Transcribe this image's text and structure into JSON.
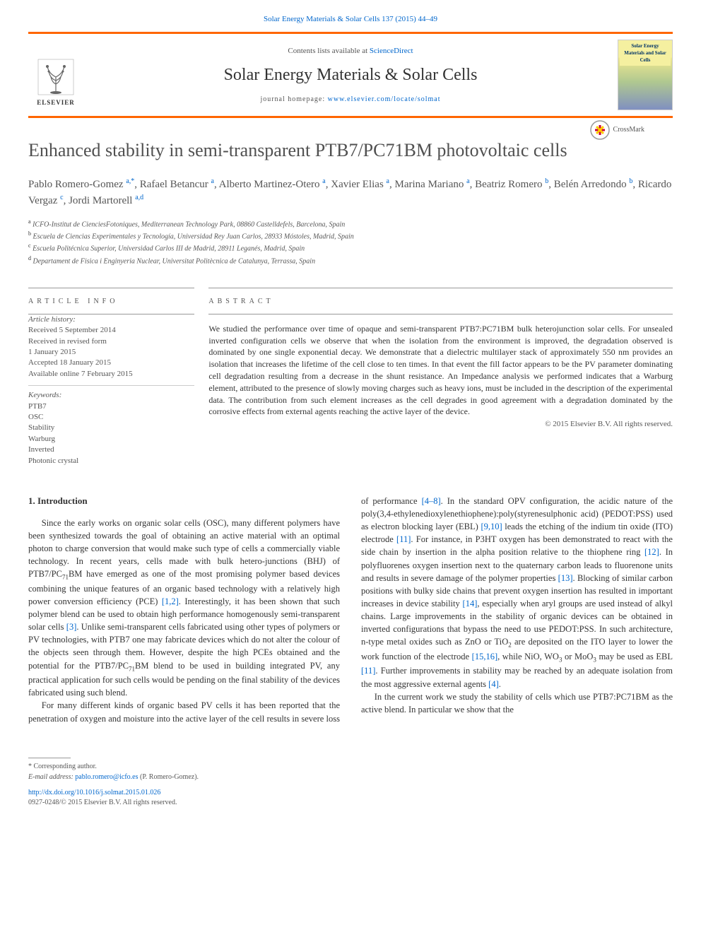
{
  "top_citation": "Solar Energy Materials & Solar Cells 137 (2015) 44–49",
  "header": {
    "publisher": "ELSEVIER",
    "contents_prefix": "Contents lists available at ",
    "contents_link": "ScienceDirect",
    "journal_title": "Solar Energy Materials & Solar Cells",
    "homepage_prefix": "journal homepage: ",
    "homepage_url": "www.elsevier.com/locate/solmat",
    "cover_title": "Solar Energy Materials and Solar Cells"
  },
  "crossmark": "CrossMark",
  "title": "Enhanced stability in semi-transparent PTB7/PC71BM photovoltaic cells",
  "authors_html": "Pablo Romero-Gomez <sup class='author-sup'>a,</sup><a href='#'><sup class='author-sup'>*</sup></a>, Rafael Betancur <sup class='author-sup'>a</sup>, Alberto Martinez-Otero <sup class='author-sup'>a</sup>, Xavier Elias <sup class='author-sup'>a</sup>, Marina Mariano <sup class='author-sup'>a</sup>, Beatriz Romero <sup class='author-sup'>b</sup>, Belén Arredondo <sup class='author-sup'>b</sup>, Ricardo Vergaz <sup class='author-sup'>c</sup>, Jordi Martorell <sup class='author-sup'>a,d</sup>",
  "affiliations": [
    {
      "sup": "a",
      "text": "ICFO-Institut de CienciesFotoniques, Mediterranean Technology Park, 08860 Castelldefels, Barcelona, Spain"
    },
    {
      "sup": "b",
      "text": "Escuela de Ciencias Experimentales y Tecnología, Universidad Rey Juan Carlos, 28933 Móstoles, Madrid, Spain"
    },
    {
      "sup": "c",
      "text": "Escuela Politécnica Superior, Universidad Carlos III de Madrid, 28911 Leganés, Madrid, Spain"
    },
    {
      "sup": "d",
      "text": "Departament de Fisica i Enginyeria Nuclear, Universitat Politècnica de Catalunya, Terrassa, Spain"
    }
  ],
  "article_info": {
    "label": "article info",
    "history_heading": "Article history:",
    "history": [
      "Received 5 September 2014",
      "Received in revised form",
      "1 January 2015",
      "Accepted 18 January 2015",
      "Available online 7 February 2015"
    ],
    "keywords_heading": "Keywords:",
    "keywords": [
      "PTB7",
      "OSC",
      "Stability",
      "Warburg",
      "Inverted",
      "Photonic crystal"
    ]
  },
  "abstract": {
    "label": "abstract",
    "text": "We studied the performance over time of opaque and semi-transparent PTB7:PC71BM bulk heterojunction solar cells. For unsealed inverted configuration cells we observe that when the isolation from the environment is improved, the degradation observed is dominated by one single exponential decay. We demonstrate that a dielectric multilayer stack of approximately 550 nm provides an isolation that increases the lifetime of the cell close to ten times. In that event the fill factor appears to be the PV parameter dominating cell degradation resulting from a decrease in the shunt resistance. An Impedance analysis we performed indicates that a Warburg element, attributed to the presence of slowly moving charges such as heavy ions, must be included in the description of the experimental data. The contribution from such element increases as the cell degrades in good agreement with a degradation dominated by the corrosive effects from external agents reaching the active layer of the device.",
    "copyright": "© 2015 Elsevier B.V. All rights reserved."
  },
  "body": {
    "heading": "1. Introduction",
    "p1_html": "Since the early works on organic solar cells (OSC), many different polymers have been synthesized towards the goal of obtaining an active material with an optimal photon to charge conversion that would make such type of cells a commercially viable technology. In recent years, cells made with bulk hetero-junctions (BHJ) of PTB7/PC<sub>71</sub>BM have emerged as one of the most promising polymer based devices combining the unique features of an organic based technology with a relatively high power conversion efficiency (PCE) <span class='ref-link'>[1,2]</span>. Interestingly, it has been shown that such polymer blend can be used to obtain high performance homogenously semi-transparent solar cells <span class='ref-link'>[3]</span>. Unlike semi-transparent cells fabricated using other types of polymers or PV technologies, with PTB7 one may fabricate devices which do not alter the colour of the objects seen through them. However, despite the high PCEs obtained and the potential for the PTB7/PC<sub>71</sub>BM blend to be used in building integrated PV, any practical application for such cells would be pending on the final stability of the devices fabricated using such blend.",
    "p2_html": "For many different kinds of organic based PV cells it has been reported that the penetration of oxygen and moisture into the active layer of the cell results in severe loss of performance <span class='ref-link'>[4–8]</span>. In the standard OPV configuration, the acidic nature of the poly(3,4-ethylenedioxylenethiophene):poly(styrenesulphonic acid) (PEDOT:PSS) used as electron blocking layer (EBL) <span class='ref-link'>[9,10]</span> leads the etching of the indium tin oxide (ITO) electrode <span class='ref-link'>[11]</span>. For instance, in P3HT oxygen has been demonstrated to react with the side chain by insertion in the alpha position relative to the thiophene ring <span class='ref-link'>[12]</span>. In polyfluorenes oxygen insertion next to the quaternary carbon leads to fluorenone units and results in severe damage of the polymer properties <span class='ref-link'>[13]</span>. Blocking of similar carbon positions with bulky side chains that prevent oxygen insertion has resulted in important increases in device stability <span class='ref-link'>[14]</span>, especially when aryl groups are used instead of alkyl chains. Large improvements in the stability of organic devices can be obtained in inverted configurations that bypass the need to use PEDOT:PSS. In such architecture, n-type metal oxides such as ZnO or TiO<sub>2</sub> are deposited on the ITO layer to lower the work function of the electrode <span class='ref-link'>[15,16]</span>, while NiO, WO<sub>3</sub> or MoO<sub>3</sub> may be used as EBL <span class='ref-link'>[11]</span>. Further improvements in stability may be reached by an adequate isolation from the most aggressive external agents <span class='ref-link'>[4]</span>.",
    "p3_html": "In the current work we study the stability of cells which use PTB7:PC71BM as the active blend. In particular we show that the"
  },
  "footnote": {
    "corresponding_label": "* Corresponding author.",
    "email_label": "E-mail address: ",
    "email": "pablo.romero@icfo.es",
    "email_suffix": " (P. Romero-Gomez)."
  },
  "bottom": {
    "doi": "http://dx.doi.org/10.1016/j.solmat.2015.01.026",
    "issn": "0927-0248/© 2015 Elsevier B.V. All rights reserved."
  },
  "colors": {
    "accent": "#ff6600",
    "link": "#0066cc",
    "text": "#333333",
    "muted": "#555555"
  }
}
